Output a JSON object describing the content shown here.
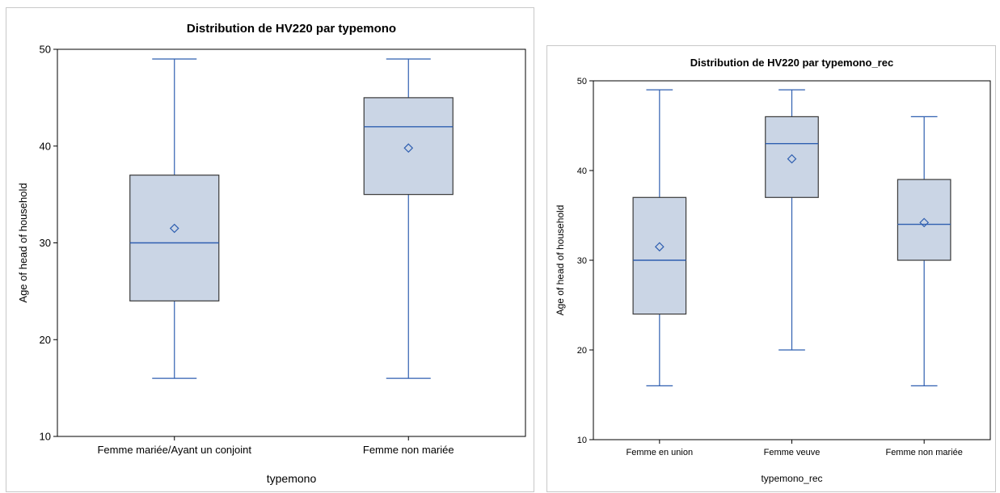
{
  "colors": {
    "box_fill": "#cad5e5",
    "box_stroke": "#3a3a3a",
    "whisker": "#2f5fb0",
    "median": "#2f5fb0",
    "mean_marker": "#2f5fb0",
    "axis": "#000000"
  },
  "chart_data": [
    {
      "type": "box",
      "title": "Distribution de HV220 par typemono",
      "xlabel": "typemono",
      "ylabel": "Age of head of household",
      "ylim": [
        10,
        50
      ],
      "yticks": [
        10,
        20,
        30,
        40,
        50
      ],
      "grid": false,
      "categories": [
        "Femme mariée/Ayant un conjoint",
        "Femme non mariée"
      ],
      "boxes": [
        {
          "min": 16,
          "q1": 24,
          "median": 30,
          "q3": 37,
          "max": 49,
          "mean": 31.5
        },
        {
          "min": 16,
          "q1": 35,
          "median": 42,
          "q3": 45,
          "max": 49,
          "mean": 39.8
        }
      ]
    },
    {
      "type": "box",
      "title": "Distribution de HV220 par typemono_rec",
      "xlabel": "typemono_rec",
      "ylabel": "Age of head of household",
      "ylim": [
        10,
        50
      ],
      "yticks": [
        10,
        20,
        30,
        40,
        50
      ],
      "grid": false,
      "categories": [
        "Femme en union",
        "Femme veuve",
        "Femme non mariée"
      ],
      "boxes": [
        {
          "min": 16,
          "q1": 24,
          "median": 30,
          "q3": 37,
          "max": 49,
          "mean": 31.5
        },
        {
          "min": 20,
          "q1": 37,
          "median": 43,
          "q3": 46,
          "max": 49,
          "mean": 41.3
        },
        {
          "min": 16,
          "q1": 30,
          "median": 34,
          "q3": 39,
          "max": 46,
          "mean": 34.2
        }
      ]
    }
  ]
}
